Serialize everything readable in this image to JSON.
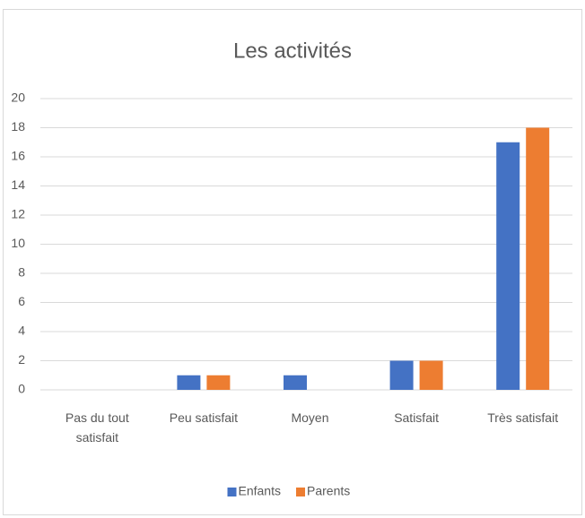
{
  "chart_data": {
    "type": "bar",
    "title": "Les activités",
    "categories": [
      "Pas du tout satisfait",
      "Peu satisfait",
      "Moyen",
      "Satisfait",
      "Très satisfait"
    ],
    "series": [
      {
        "name": "Enfants",
        "color": "#4472c4",
        "values": [
          0,
          1,
          1,
          2,
          17
        ]
      },
      {
        "name": "Parents",
        "color": "#ed7d31",
        "values": [
          0,
          1,
          0,
          2,
          18
        ]
      }
    ],
    "ylim": [
      0,
      20
    ],
    "yticks": [
      0,
      2,
      4,
      6,
      8,
      10,
      12,
      14,
      16,
      18,
      20
    ],
    "grid": true,
    "legend": "bottom"
  }
}
